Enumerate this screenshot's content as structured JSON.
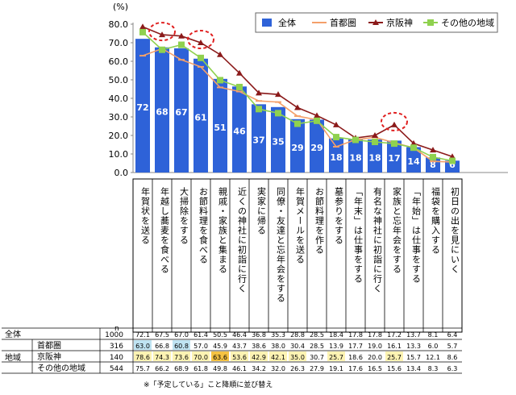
{
  "chart_data": {
    "type": "bar",
    "unit_label": "(%)",
    "ylim": [
      0,
      80
    ],
    "yticks": [
      "0.0",
      "10.0",
      "20.0",
      "30.0",
      "40.0",
      "50.0",
      "60.0",
      "70.0",
      "80.0"
    ],
    "grid": false,
    "legend_position": "top-right",
    "categories": [
      "年賀状を送る",
      "年越し蕎麦を食べる",
      "大掃除をする",
      "お節料理を食べる",
      "親戚・家族と集まる",
      "近くの神社に初詣に行く",
      "実家に帰る",
      "同僚・友達と忘年会をする",
      "年賀メールを送る",
      "お節料理を作る",
      "墓参りをする",
      "「年末」は仕事をする",
      "有名な神社に初詣に行く",
      "家族と忘年会をする",
      "「年始」は仕事をする",
      "福袋を購入する",
      "初日の出を見にいく"
    ],
    "bar_labels": [
      "72",
      "68",
      "67",
      "61",
      "51",
      "46",
      "37",
      "35",
      "29",
      "29",
      "18",
      "18",
      "18",
      "17",
      "14",
      "8",
      "6"
    ],
    "series": [
      {
        "name": "全体",
        "kind": "bar",
        "color": "#2e62d8",
        "values": [
          72.1,
          67.5,
          67.0,
          61.4,
          50.5,
          46.4,
          36.8,
          35.3,
          28.8,
          28.5,
          18.4,
          17.8,
          17.8,
          17.2,
          13.7,
          8.1,
          6.4
        ]
      },
      {
        "name": "首都圏",
        "kind": "line",
        "color": "#f4a06a",
        "values": [
          63.0,
          66.8,
          60.8,
          57.0,
          45.9,
          43.7,
          38.6,
          38.0,
          30.4,
          28.5,
          13.9,
          17.7,
          19.0,
          16.1,
          13.3,
          6.0,
          5.7
        ]
      },
      {
        "name": "京阪神",
        "kind": "line",
        "color": "#8b1a1a",
        "values": [
          78.6,
          74.3,
          73.6,
          70.0,
          63.6,
          53.6,
          42.9,
          42.1,
          35.0,
          30.7,
          25.7,
          18.6,
          20.0,
          25.7,
          15.7,
          12.1,
          8.6
        ]
      },
      {
        "name": "その他の地域",
        "kind": "line",
        "color": "#8fd14f",
        "values": [
          75.7,
          66.2,
          68.9,
          61.8,
          49.8,
          46.1,
          34.2,
          32.0,
          26.3,
          27.9,
          19.1,
          17.6,
          16.5,
          15.6,
          13.4,
          8.3,
          6.3
        ]
      }
    ],
    "table": {
      "n_header": "n",
      "region_label": "地域",
      "rows": [
        {
          "label": "全体",
          "n": "1000",
          "values": [
            "72.1",
            "67.5",
            "67.0",
            "61.4",
            "50.5",
            "46.4",
            "36.8",
            "35.3",
            "28.8",
            "28.5",
            "18.4",
            "17.8",
            "17.8",
            "17.2",
            "13.7",
            "8.1",
            "6.4"
          ]
        },
        {
          "label": "首都圏",
          "n": "316",
          "values": [
            "63.0",
            "66.8",
            "60.8",
            "57.0",
            "45.9",
            "43.7",
            "38.6",
            "38.0",
            "30.4",
            "28.5",
            "13.9",
            "17.7",
            "19.0",
            "16.1",
            "13.3",
            "6.0",
            "5.7"
          ]
        },
        {
          "label": "京阪神",
          "n": "140",
          "values": [
            "78.6",
            "74.3",
            "73.6",
            "70.0",
            "63.6",
            "53.6",
            "42.9",
            "42.1",
            "35.0",
            "30.7",
            "25.7",
            "18.6",
            "20.0",
            "25.7",
            "15.7",
            "12.1",
            "8.6"
          ]
        },
        {
          "label": "その他の地域",
          "n": "544",
          "values": [
            "75.7",
            "66.2",
            "68.9",
            "61.8",
            "49.8",
            "46.1",
            "34.2",
            "32.0",
            "26.3",
            "27.9",
            "19.1",
            "17.6",
            "16.5",
            "15.6",
            "13.4",
            "8.3",
            "6.3"
          ]
        }
      ],
      "highlights": [
        {
          "row": 1,
          "col": 0,
          "color": "#bfe3f2"
        },
        {
          "row": 1,
          "col": 2,
          "color": "#bfe3f2"
        },
        {
          "row": 2,
          "col": 0,
          "color": "#fdf3b3"
        },
        {
          "row": 2,
          "col": 1,
          "color": "#fdf3b3"
        },
        {
          "row": 2,
          "col": 2,
          "color": "#fdf3b3"
        },
        {
          "row": 2,
          "col": 3,
          "color": "#fdf3b3"
        },
        {
          "row": 2,
          "col": 4,
          "color": "#f5c242"
        },
        {
          "row": 2,
          "col": 5,
          "color": "#fdf3b3"
        },
        {
          "row": 2,
          "col": 6,
          "color": "#fdf3b3"
        },
        {
          "row": 2,
          "col": 7,
          "color": "#fdf3b3"
        },
        {
          "row": 2,
          "col": 8,
          "color": "#fdf3b3"
        },
        {
          "row": 2,
          "col": 10,
          "color": "#fdf3b3"
        },
        {
          "row": 2,
          "col": 13,
          "color": "#fdf3b3"
        }
      ]
    },
    "annotation_circles": [
      {
        "category_index": 1,
        "value": 74.3
      },
      {
        "category_index": 3,
        "value": 70.0
      },
      {
        "category_index": 13,
        "value": 25.7
      }
    ]
  },
  "footnote": "※「予定している」こと降順に並び替え"
}
